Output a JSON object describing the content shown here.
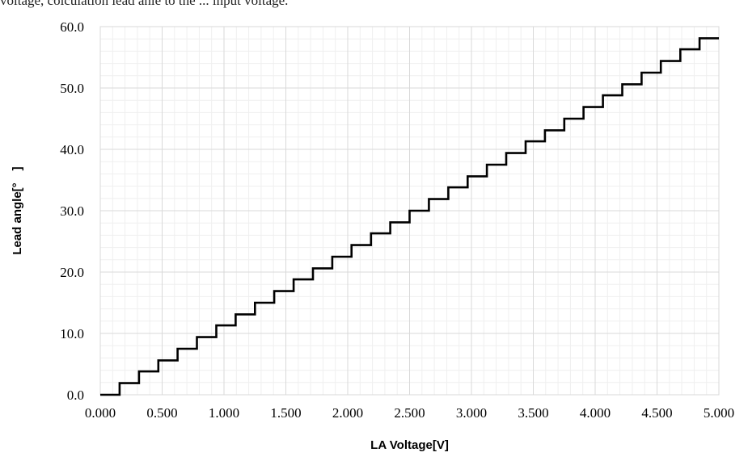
{
  "caption": "voltage, colculation lead anle to the ... input voltage.",
  "chart_data": {
    "type": "line",
    "step": true,
    "xlabel": "LA Voltage[V]",
    "ylabel": "Lead angle[°　]",
    "xlim": [
      0,
      5
    ],
    "ylim": [
      0,
      60
    ],
    "x_ticks": [
      "0.000",
      "0.500",
      "1.000",
      "1.500",
      "2.000",
      "2.500",
      "3.000",
      "3.500",
      "4.000",
      "4.500",
      "5.000"
    ],
    "y_ticks": [
      "0.0",
      "10.0",
      "20.0",
      "30.0",
      "40.0",
      "50.0",
      "60.0"
    ],
    "grid": true,
    "minor_grid": true,
    "series": [
      {
        "color": "#000000",
        "x": [
          0.0,
          0.156,
          0.313,
          0.469,
          0.625,
          0.781,
          0.938,
          1.094,
          1.25,
          1.406,
          1.563,
          1.719,
          1.875,
          2.031,
          2.188,
          2.344,
          2.5,
          2.656,
          2.813,
          2.969,
          3.125,
          3.281,
          3.438,
          3.594,
          3.75,
          3.906,
          4.063,
          4.219,
          4.375,
          4.531,
          4.688,
          4.844,
          5.0
        ],
        "y": [
          0.0,
          1.9,
          3.8,
          5.6,
          7.5,
          9.4,
          11.3,
          13.1,
          15.0,
          16.9,
          18.8,
          20.6,
          22.5,
          24.4,
          26.3,
          28.1,
          30.0,
          31.9,
          33.8,
          35.6,
          37.5,
          39.4,
          41.3,
          43.1,
          45.0,
          46.9,
          48.8,
          50.6,
          52.5,
          54.4,
          56.3,
          58.1,
          58.1
        ]
      }
    ]
  }
}
